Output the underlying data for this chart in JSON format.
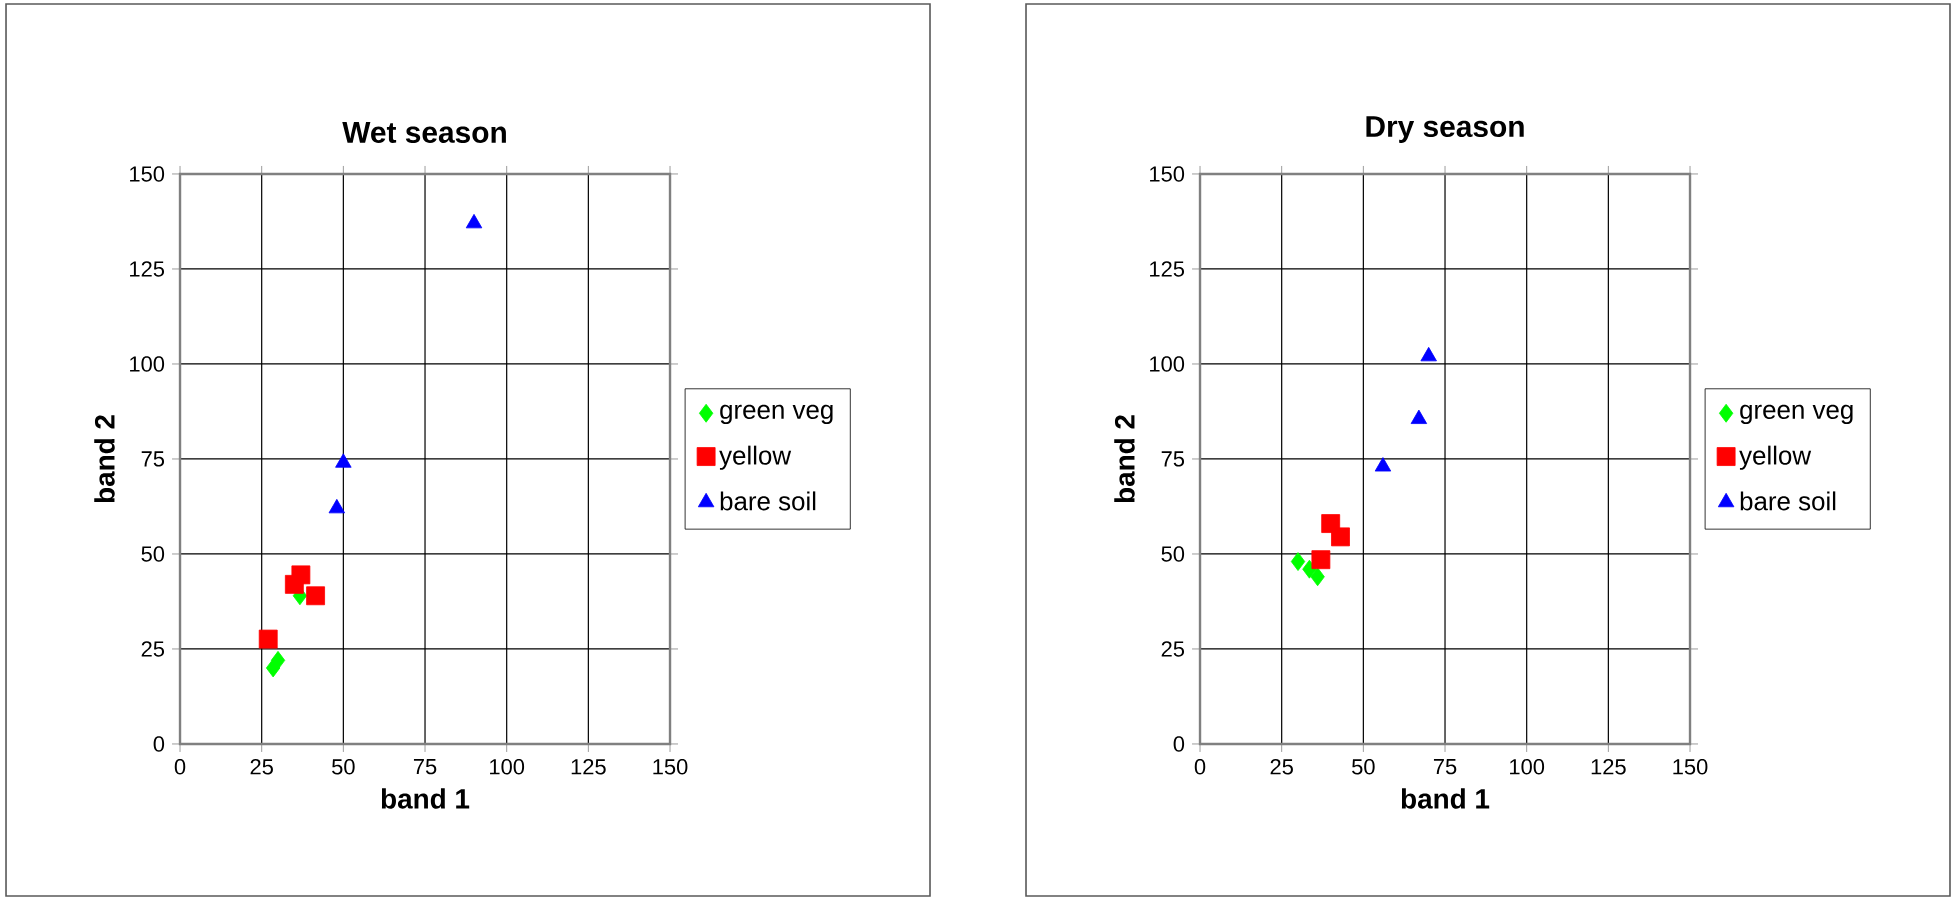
{
  "chart_data": [
    {
      "type": "scatter",
      "title": "Wet season",
      "xlabel": "band 1",
      "ylabel": "band 2",
      "xlim": [
        0,
        150
      ],
      "ylim": [
        0,
        150
      ],
      "xticks": [
        0,
        25,
        50,
        75,
        100,
        125,
        150
      ],
      "yticks": [
        0,
        25,
        50,
        75,
        100,
        125,
        150
      ],
      "grid": true,
      "legend": "right",
      "series": [
        {
          "name": "green veg",
          "color": "#00ff00",
          "marker": "diamond",
          "x": [
            30,
            28.5,
            36.7
          ],
          "values": [
            22,
            20,
            39
          ]
        },
        {
          "name": "yellow",
          "color": "#ff0000",
          "marker": "square",
          "x": [
            27,
            37,
            35,
            41.5
          ],
          "values": [
            27.6,
            44.5,
            42,
            39
          ]
        },
        {
          "name": "bare soil",
          "color": "#0000ff",
          "marker": "triangle",
          "x": [
            90,
            50,
            48
          ],
          "values": [
            137,
            74,
            62
          ]
        }
      ]
    },
    {
      "type": "scatter",
      "title": "Dry season",
      "xlabel": "band 1",
      "ylabel": "band 2",
      "xlim": [
        0,
        150
      ],
      "ylim": [
        0,
        150
      ],
      "xticks": [
        0,
        25,
        50,
        75,
        100,
        125,
        150
      ],
      "yticks": [
        0,
        25,
        50,
        75,
        100,
        125,
        150
      ],
      "grid": true,
      "legend": "right",
      "series": [
        {
          "name": "green veg",
          "color": "#00ff00",
          "marker": "diamond",
          "x": [
            30,
            36,
            33.5
          ],
          "values": [
            48,
            44,
            46
          ]
        },
        {
          "name": "yellow",
          "color": "#ff0000",
          "marker": "square",
          "x": [
            40,
            43,
            37
          ],
          "values": [
            58,
            54.5,
            48.5
          ]
        },
        {
          "name": "bare soil",
          "color": "#0000ff",
          "marker": "triangle",
          "x": [
            70,
            67,
            56
          ],
          "values": [
            102,
            85.5,
            73
          ]
        }
      ]
    }
  ]
}
